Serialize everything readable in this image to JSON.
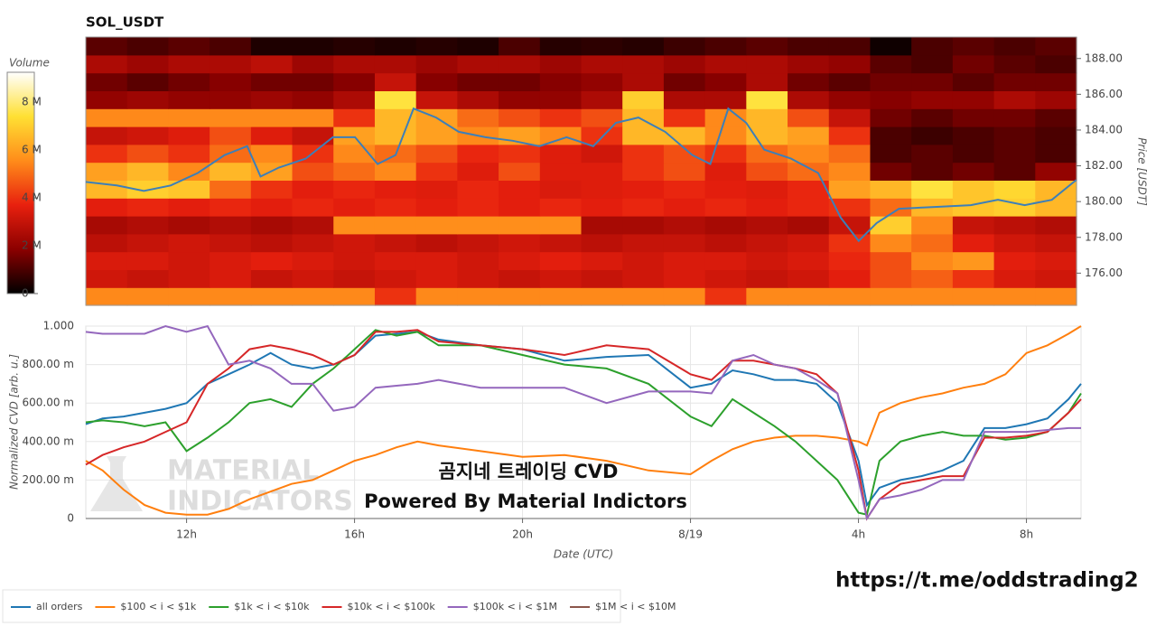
{
  "title": "SOL_USDT",
  "watermark": [
    "MATERIAL",
    "INDICATORS"
  ],
  "overlay_texts": [
    "곰지네 트레이딩 CVD",
    "Powered By Material Indictors"
  ],
  "url": "https://t.me/oddstrading2",
  "chart_data": [
    {
      "type": "heatmap",
      "ylabel": "Price [USDT]",
      "xlim": [
        9.6,
        33.3
      ],
      "ylim": [
        174.2,
        189.2
      ],
      "yticks": [
        {
          "value": 176,
          "label": "176.00"
        },
        {
          "value": 178,
          "label": "178.00"
        },
        {
          "value": 180,
          "label": "180.00"
        },
        {
          "value": 182,
          "label": "182.00"
        },
        {
          "value": 184,
          "label": "184.00"
        },
        {
          "value": 186,
          "label": "186.00"
        },
        {
          "value": 188,
          "label": "188.00"
        }
      ],
      "colorbar_label": "Volume",
      "clim": [
        0,
        9.25
      ],
      "cticks": [
        0,
        {
          "value": 2,
          "label": "2 M"
        },
        {
          "value": 4,
          "label": "4 M"
        },
        {
          "value": 6,
          "label": "6 M"
        },
        {
          "value": 8,
          "label": "8 M"
        }
      ],
      "colormap": [
        "#000000",
        "#8b0000",
        "#e8200e",
        "#ff8c1a",
        "#ffe033",
        "#ffffff"
      ],
      "z": [
        [
          5.5,
          5.5,
          5.5,
          5.5,
          5.5,
          5.5,
          5.5,
          4.0,
          5.5,
          5.5,
          5.5,
          5.5,
          5.5,
          5.5,
          5.5,
          4.0,
          5.5,
          5.5,
          5.5,
          5.5,
          5.5,
          5.5,
          5.5,
          5.5
        ],
        [
          3.2,
          3.0,
          3.2,
          3.4,
          3.0,
          3.2,
          3.0,
          3.2,
          3.4,
          3.2,
          3.0,
          3.2,
          3.0,
          3.2,
          3.4,
          3.2,
          3.0,
          3.2,
          3.6,
          4.5,
          4.8,
          4.0,
          3.4,
          3.2
        ],
        [
          3.4,
          3.4,
          3.2,
          3.4,
          3.6,
          3.4,
          3.2,
          3.4,
          3.4,
          3.2,
          3.4,
          3.6,
          3.4,
          3.2,
          3.4,
          3.4,
          3.2,
          3.4,
          3.8,
          4.5,
          5.5,
          5.8,
          3.6,
          3.4
        ],
        [
          2.8,
          3.0,
          3.2,
          3.0,
          2.8,
          3.0,
          3.2,
          3.0,
          2.8,
          3.0,
          3.2,
          3.0,
          2.8,
          3.0,
          3.0,
          2.8,
          3.0,
          3.2,
          4.0,
          5.5,
          5.0,
          3.6,
          3.2,
          3.0
        ],
        [
          2.4,
          2.6,
          2.4,
          2.6,
          2.4,
          2.6,
          5.6,
          5.6,
          5.6,
          5.6,
          5.6,
          5.6,
          2.4,
          2.4,
          2.6,
          2.4,
          2.6,
          2.4,
          3.0,
          7.0,
          5.5,
          3.0,
          2.8,
          2.6
        ],
        [
          3.6,
          3.8,
          3.6,
          3.8,
          3.6,
          3.8,
          3.6,
          3.8,
          3.6,
          3.8,
          3.6,
          3.8,
          3.6,
          3.8,
          3.6,
          3.8,
          3.6,
          3.8,
          4.0,
          5.0,
          6.5,
          6.8,
          7.0,
          6.5
        ],
        [
          6.5,
          7.0,
          6.8,
          5.0,
          4.0,
          3.6,
          3.8,
          3.6,
          3.5,
          3.8,
          3.6,
          3.4,
          3.5,
          3.6,
          3.8,
          3.6,
          3.5,
          3.8,
          6.0,
          6.5,
          7.5,
          6.8,
          7.2,
          6.5
        ],
        [
          6.0,
          6.5,
          5.5,
          6.5,
          6.0,
          4.5,
          5.0,
          5.5,
          4.0,
          3.5,
          4.5,
          3.5,
          3.5,
          4.0,
          4.5,
          3.5,
          4.5,
          5.0,
          5.5,
          1.5,
          1.2,
          1.5,
          1.2,
          2.0
        ],
        [
          4.0,
          4.5,
          4.0,
          5.0,
          5.5,
          4.0,
          5.5,
          5.0,
          4.5,
          3.8,
          4.0,
          3.5,
          3.2,
          4.0,
          4.5,
          4.0,
          5.0,
          5.5,
          5.0,
          1.0,
          1.2,
          1.0,
          1.2,
          1.0
        ],
        [
          3.0,
          3.2,
          3.5,
          4.5,
          3.5,
          3.0,
          6.0,
          6.5,
          6.0,
          5.5,
          6.0,
          5.5,
          4.0,
          6.5,
          6.5,
          5.5,
          6.5,
          6.0,
          4.0,
          1.0,
          0.8,
          1.0,
          1.2,
          1.0
        ],
        [
          5.5,
          5.5,
          5.5,
          5.5,
          5.5,
          5.5,
          4.0,
          6.5,
          6.0,
          5.0,
          4.5,
          4.0,
          4.5,
          6.5,
          4.0,
          5.5,
          6.5,
          4.5,
          3.0,
          1.5,
          1.2,
          1.5,
          1.5,
          1.2
        ],
        [
          2.0,
          2.2,
          2.0,
          2.0,
          2.2,
          2.0,
          2.5,
          7.5,
          3.0,
          2.5,
          2.0,
          2.0,
          2.5,
          7.0,
          2.5,
          2.5,
          7.5,
          2.5,
          2.0,
          1.8,
          2.0,
          2.0,
          2.5,
          2.2
        ],
        [
          1.5,
          1.2,
          1.5,
          1.8,
          1.5,
          1.5,
          1.8,
          3.0,
          1.8,
          1.5,
          1.5,
          1.8,
          2.0,
          2.5,
          1.5,
          1.8,
          2.5,
          1.5,
          1.2,
          1.5,
          1.5,
          1.2,
          1.5,
          1.5
        ],
        [
          2.5,
          2.2,
          2.5,
          2.5,
          2.8,
          2.2,
          2.5,
          2.5,
          2.2,
          2.5,
          2.5,
          2.2,
          2.5,
          2.5,
          2.2,
          2.5,
          2.5,
          2.2,
          2.0,
          1.2,
          1.0,
          1.5,
          1.2,
          1.0
        ],
        [
          1.2,
          1.0,
          1.2,
          1.0,
          0.4,
          0.4,
          0.5,
          0.4,
          0.5,
          0.4,
          1.0,
          0.5,
          0.6,
          0.5,
          0.8,
          1.0,
          1.2,
          1.0,
          1.0,
          0.2,
          1.0,
          1.2,
          1.0,
          1.2
        ]
      ],
      "line": {
        "color": "#3d7fb8",
        "x": [
          9.6,
          10.34,
          10.99,
          11.63,
          12.28,
          12.92,
          13.46,
          13.78,
          14.22,
          14.86,
          15.51,
          16.04,
          16.58,
          17.01,
          17.44,
          17.98,
          18.52,
          19.16,
          19.81,
          20.45,
          21.1,
          21.74,
          22.28,
          22.82,
          23.46,
          24.11,
          24.54,
          24.97,
          25.4,
          25.83,
          26.47,
          27.12,
          27.66,
          28.09,
          28.52,
          29.05,
          29.91,
          30.77,
          31.42,
          32.06,
          32.71,
          33.29
        ],
        "values": [
          181.1,
          180.9,
          180.6,
          180.9,
          181.6,
          182.6,
          183.1,
          181.4,
          181.9,
          182.4,
          183.6,
          183.6,
          182.1,
          182.6,
          185.2,
          184.7,
          183.9,
          183.6,
          183.4,
          183.1,
          183.6,
          183.1,
          184.4,
          184.7,
          183.9,
          182.6,
          182.1,
          185.2,
          184.4,
          182.9,
          182.4,
          181.6,
          179.1,
          177.8,
          178.8,
          179.6,
          179.7,
          179.8,
          180.1,
          179.8,
          180.1,
          181.2
        ]
      }
    },
    {
      "type": "line",
      "xlabel": "Date (UTC)",
      "ylabel": "Normalized CVD [arb. u.]",
      "grid": true,
      "legend": "bottom-left",
      "xlim": [
        9.6,
        33.3
      ],
      "xticks": [
        {
          "value": 12,
          "label": "12h"
        },
        {
          "value": 16,
          "label": "16h"
        },
        {
          "value": 20,
          "label": "20h"
        },
        {
          "value": 24,
          "label": "8/19"
        },
        {
          "value": 28,
          "label": "4h"
        },
        {
          "value": 32,
          "label": "8h"
        }
      ],
      "ylim": [
        0,
        1
      ],
      "yticks": [
        0,
        {
          "value": 0.2,
          "label": "200.00 m"
        },
        {
          "value": 0.4,
          "label": "400.00 m"
        },
        {
          "value": 0.6,
          "label": "600.00 m"
        },
        {
          "value": 0.8,
          "label": "800.00 m"
        },
        {
          "value": 1,
          "label": "1.000"
        }
      ],
      "x": [
        9.6,
        10,
        10.5,
        11,
        11.5,
        12,
        12.5,
        13,
        13.5,
        14,
        14.5,
        15,
        15.5,
        16,
        16.5,
        17,
        17.5,
        18,
        19,
        20,
        21,
        22,
        23,
        24,
        24.5,
        25,
        25.5,
        26,
        26.5,
        27,
        27.5,
        28,
        28.2,
        28.5,
        29,
        29.5,
        30,
        30.5,
        31,
        31.5,
        32,
        32.5,
        33,
        33.3
      ],
      "series": [
        {
          "name": "all orders",
          "color": "#1f77b4",
          "values": [
            0.49,
            0.52,
            0.53,
            0.55,
            0.57,
            0.6,
            0.7,
            0.75,
            0.8,
            0.86,
            0.8,
            0.78,
            0.8,
            0.85,
            0.95,
            0.96,
            0.97,
            0.93,
            0.9,
            0.88,
            0.82,
            0.84,
            0.85,
            0.68,
            0.7,
            0.77,
            0.75,
            0.72,
            0.72,
            0.7,
            0.6,
            0.3,
            0.07,
            0.16,
            0.2,
            0.22,
            0.25,
            0.3,
            0.47,
            0.47,
            0.49,
            0.52,
            0.62,
            0.7
          ]
        },
        {
          "name": "$100 < i < $1k",
          "color": "#ff7f0e",
          "values": [
            0.3,
            0.25,
            0.15,
            0.07,
            0.03,
            0.02,
            0.02,
            0.05,
            0.1,
            0.14,
            0.18,
            0.2,
            0.25,
            0.3,
            0.33,
            0.37,
            0.4,
            0.38,
            0.35,
            0.32,
            0.33,
            0.3,
            0.25,
            0.23,
            0.3,
            0.36,
            0.4,
            0.42,
            0.43,
            0.43,
            0.42,
            0.4,
            0.38,
            0.55,
            0.6,
            0.63,
            0.65,
            0.68,
            0.7,
            0.75,
            0.86,
            0.9,
            0.96,
            1.0
          ]
        },
        {
          "name": "$1k < i < $10k",
          "color": "#2ca02c",
          "values": [
            0.5,
            0.51,
            0.5,
            0.48,
            0.5,
            0.35,
            0.42,
            0.5,
            0.6,
            0.62,
            0.58,
            0.7,
            0.78,
            0.88,
            0.98,
            0.95,
            0.97,
            0.9,
            0.9,
            0.85,
            0.8,
            0.78,
            0.7,
            0.53,
            0.48,
            0.62,
            0.55,
            0.48,
            0.4,
            0.3,
            0.2,
            0.03,
            0.02,
            0.3,
            0.4,
            0.43,
            0.45,
            0.43,
            0.43,
            0.41,
            0.42,
            0.45,
            0.55,
            0.65
          ]
        },
        {
          "name": "$10k < i < $100k",
          "color": "#d62728",
          "values": [
            0.28,
            0.33,
            0.37,
            0.4,
            0.45,
            0.5,
            0.7,
            0.78,
            0.88,
            0.9,
            0.88,
            0.85,
            0.8,
            0.85,
            0.97,
            0.97,
            0.98,
            0.92,
            0.9,
            0.88,
            0.85,
            0.9,
            0.88,
            0.75,
            0.72,
            0.82,
            0.82,
            0.8,
            0.78,
            0.75,
            0.65,
            0.25,
            0,
            0.1,
            0.18,
            0.2,
            0.22,
            0.22,
            0.42,
            0.42,
            0.43,
            0.45,
            0.55,
            0.62
          ]
        },
        {
          "name": "$100k < i < $1M",
          "color": "#9467bd",
          "values": [
            0.97,
            0.96,
            0.96,
            0.96,
            1.0,
            0.97,
            1.0,
            0.8,
            0.82,
            0.78,
            0.7,
            0.7,
            0.56,
            0.58,
            0.68,
            0.69,
            0.7,
            0.72,
            0.68,
            0.68,
            0.68,
            0.6,
            0.66,
            0.66,
            0.65,
            0.82,
            0.85,
            0.8,
            0.78,
            0.72,
            0.65,
            0.2,
            0,
            0.1,
            0.12,
            0.15,
            0.2,
            0.2,
            0.45,
            0.45,
            0.45,
            0.46,
            0.47,
            0.47
          ]
        },
        {
          "name": "$1M < i < $10M",
          "color": "#8c564b",
          "values": [
            null,
            null,
            null,
            null,
            null,
            null,
            null,
            null,
            null,
            null,
            null,
            null,
            null,
            null,
            null,
            null,
            null,
            null,
            null,
            null,
            null,
            null,
            null,
            null,
            null,
            null,
            null,
            null,
            null,
            null,
            null,
            null,
            null,
            null,
            null,
            null,
            null,
            null,
            null,
            null,
            null,
            null,
            null,
            null
          ]
        }
      ]
    }
  ]
}
